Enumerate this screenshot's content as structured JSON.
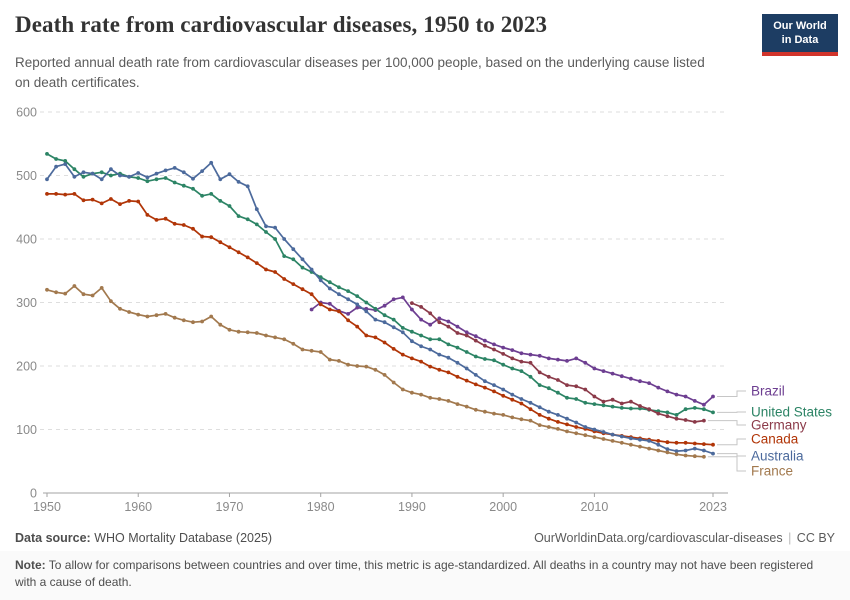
{
  "header": {
    "title": "Death rate from cardiovascular diseases, 1950 to 2023",
    "subtitle": "Reported annual death rate from cardiovascular diseases per 100,000 people, based on the underlying cause listed on death certificates.",
    "logo": {
      "line1": "Our World",
      "line2": "in Data",
      "bg_color": "#1d3d63",
      "bar_color": "#d1342b"
    }
  },
  "footer": {
    "source_label": "Data source:",
    "source_text": "WHO Mortality Database (2025)",
    "link_text": "OurWorldinData.org/cardiovascular-diseases",
    "separator": "|",
    "license_text": "CC BY",
    "note_label": "Note:",
    "note_text": "To allow for comparisons between countries and over time, this metric is age-standardized. All deaths in a country may not have been registered with a cause of death."
  },
  "chart_data": {
    "type": "line",
    "title": "Death rate from cardiovascular diseases, 1950 to 2023",
    "xlabel": "",
    "ylabel": "",
    "xlim": [
      1950,
      2023
    ],
    "ylim": [
      0,
      600
    ],
    "x_ticks": [
      1950,
      1960,
      1970,
      1980,
      1990,
      2000,
      2010,
      2023
    ],
    "y_ticks": [
      0,
      100,
      200,
      300,
      400,
      500,
      600
    ],
    "grid": "horizontal dashed",
    "legend_position": "right edge, colored country labels with gray leader lines",
    "marker": "dot",
    "series": [
      {
        "name": "Brazil",
        "color": "#6d3e91",
        "start_year": 1979,
        "values": [
          289,
          300,
          298,
          287,
          282,
          292,
          290,
          288,
          295,
          305,
          308,
          289,
          273,
          265,
          275,
          270,
          262,
          253,
          247,
          240,
          234,
          229,
          225,
          220,
          218,
          216,
          212,
          210,
          208,
          212,
          205,
          196,
          192,
          188,
          184,
          180,
          176,
          173,
          166,
          160,
          155,
          152,
          145,
          139,
          152
        ]
      },
      {
        "name": "United States",
        "color": "#2c8465",
        "start_year": 1950,
        "values": [
          534,
          526,
          523,
          510,
          498,
          503,
          505,
          500,
          503,
          498,
          496,
          491,
          494,
          496,
          489,
          484,
          479,
          468,
          471,
          460,
          452,
          436,
          431,
          423,
          411,
          400,
          373,
          368,
          355,
          348,
          340,
          332,
          324,
          318,
          310,
          300,
          290,
          280,
          273,
          260,
          254,
          248,
          242,
          242,
          234,
          229,
          222,
          215,
          211,
          209,
          202,
          196,
          192,
          183,
          170,
          165,
          158,
          150,
          148,
          142,
          140,
          138,
          136,
          134,
          133,
          133,
          131,
          129,
          127,
          123,
          132,
          134,
          132,
          127
        ]
      },
      {
        "name": "Germany",
        "color": "#8b3a49",
        "start_year": 1990,
        "values": [
          299,
          293,
          283,
          269,
          262,
          252,
          248,
          240,
          232,
          226,
          219,
          212,
          207,
          205,
          190,
          183,
          178,
          170,
          168,
          163,
          152,
          144,
          147,
          141,
          144,
          137,
          132,
          125,
          121,
          117,
          115,
          112,
          114
        ]
      },
      {
        "name": "Canada",
        "color": "#b13507",
        "start_year": 1950,
        "values": [
          471,
          471,
          470,
          471,
          461,
          462,
          456,
          463,
          455,
          460,
          459,
          438,
          430,
          432,
          424,
          422,
          416,
          404,
          403,
          395,
          387,
          379,
          371,
          362,
          352,
          348,
          337,
          329,
          321,
          313,
          297,
          289,
          286,
          272,
          262,
          248,
          245,
          237,
          227,
          218,
          212,
          207,
          199,
          194,
          190,
          183,
          177,
          171,
          166,
          160,
          153,
          147,
          141,
          132,
          123,
          117,
          112,
          108,
          104,
          101,
          97,
          94,
          92,
          90,
          88,
          86,
          84,
          82,
          80,
          79,
          79,
          78,
          77,
          76
        ]
      },
      {
        "name": "Australia",
        "color": "#4c6a9c",
        "start_year": 1950,
        "values": [
          494,
          514,
          518,
          498,
          505,
          503,
          494,
          510,
          500,
          498,
          504,
          497,
          503,
          508,
          512,
          505,
          495,
          507,
          520,
          494,
          502,
          490,
          483,
          447,
          420,
          418,
          400,
          384,
          368,
          352,
          335,
          322,
          313,
          305,
          297,
          286,
          273,
          269,
          261,
          253,
          239,
          231,
          226,
          218,
          213,
          205,
          196,
          186,
          176,
          170,
          163,
          155,
          148,
          142,
          135,
          128,
          123,
          117,
          111,
          104,
          100,
          96,
          92,
          89,
          86,
          84,
          82,
          76,
          69,
          66,
          67,
          70,
          67,
          62
        ]
      },
      {
        "name": "France",
        "color": "#a2794e",
        "start_year": 1950,
        "values": [
          320,
          316,
          314,
          326,
          313,
          311,
          323,
          302,
          290,
          285,
          281,
          278,
          280,
          282,
          276,
          272,
          269,
          270,
          278,
          265,
          257,
          254,
          253,
          252,
          248,
          245,
          242,
          235,
          226,
          224,
          222,
          210,
          208,
          202,
          200,
          199,
          194,
          186,
          174,
          163,
          158,
          155,
          150,
          148,
          145,
          140,
          136,
          131,
          128,
          125,
          123,
          119,
          116,
          114,
          107,
          104,
          101,
          97,
          94,
          91,
          88,
          85,
          82,
          79,
          76,
          73,
          70,
          67,
          64,
          61,
          59,
          58,
          57
        ]
      }
    ]
  }
}
